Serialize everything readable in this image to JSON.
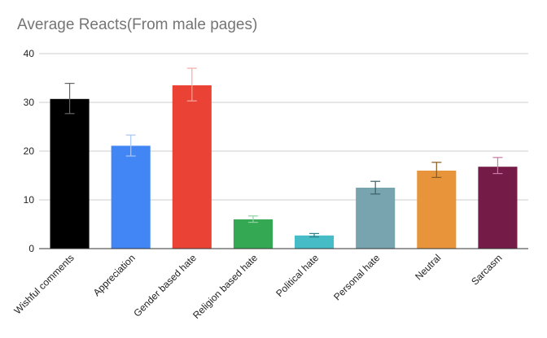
{
  "chart_data": {
    "type": "bar",
    "title": "Average Reacts(From male pages)",
    "xlabel": "",
    "ylabel": "",
    "ylim": [
      0,
      40
    ],
    "yticks": [
      0,
      10,
      20,
      30,
      40
    ],
    "grid": true,
    "legend": "none",
    "categories": [
      "Wishful comments",
      "Appreciation",
      "Gender based hate",
      "Religion based hate",
      "Political hate",
      "Personal hate",
      "Neutral",
      "Sarcasm"
    ],
    "values": [
      30.7,
      21.1,
      33.5,
      6.0,
      2.7,
      12.5,
      16.0,
      16.8
    ],
    "error_low": [
      27.7,
      19.0,
      30.3,
      5.4,
      2.4,
      11.2,
      14.6,
      15.4
    ],
    "error_high": [
      33.9,
      23.3,
      37.0,
      6.7,
      3.1,
      13.8,
      17.7,
      18.7
    ],
    "colors": [
      "#000000",
      "#4285f4",
      "#ea4335",
      "#34a853",
      "#46bdc6",
      "#78a4b0",
      "#e8943a",
      "#741b47"
    ],
    "error_colors": [
      "#666666",
      "#a8c7fa",
      "#f4a9a3",
      "#8fd3a2",
      "#2f7f86",
      "#3d5e66",
      "#8a5a1e",
      "#c97aa8"
    ]
  }
}
